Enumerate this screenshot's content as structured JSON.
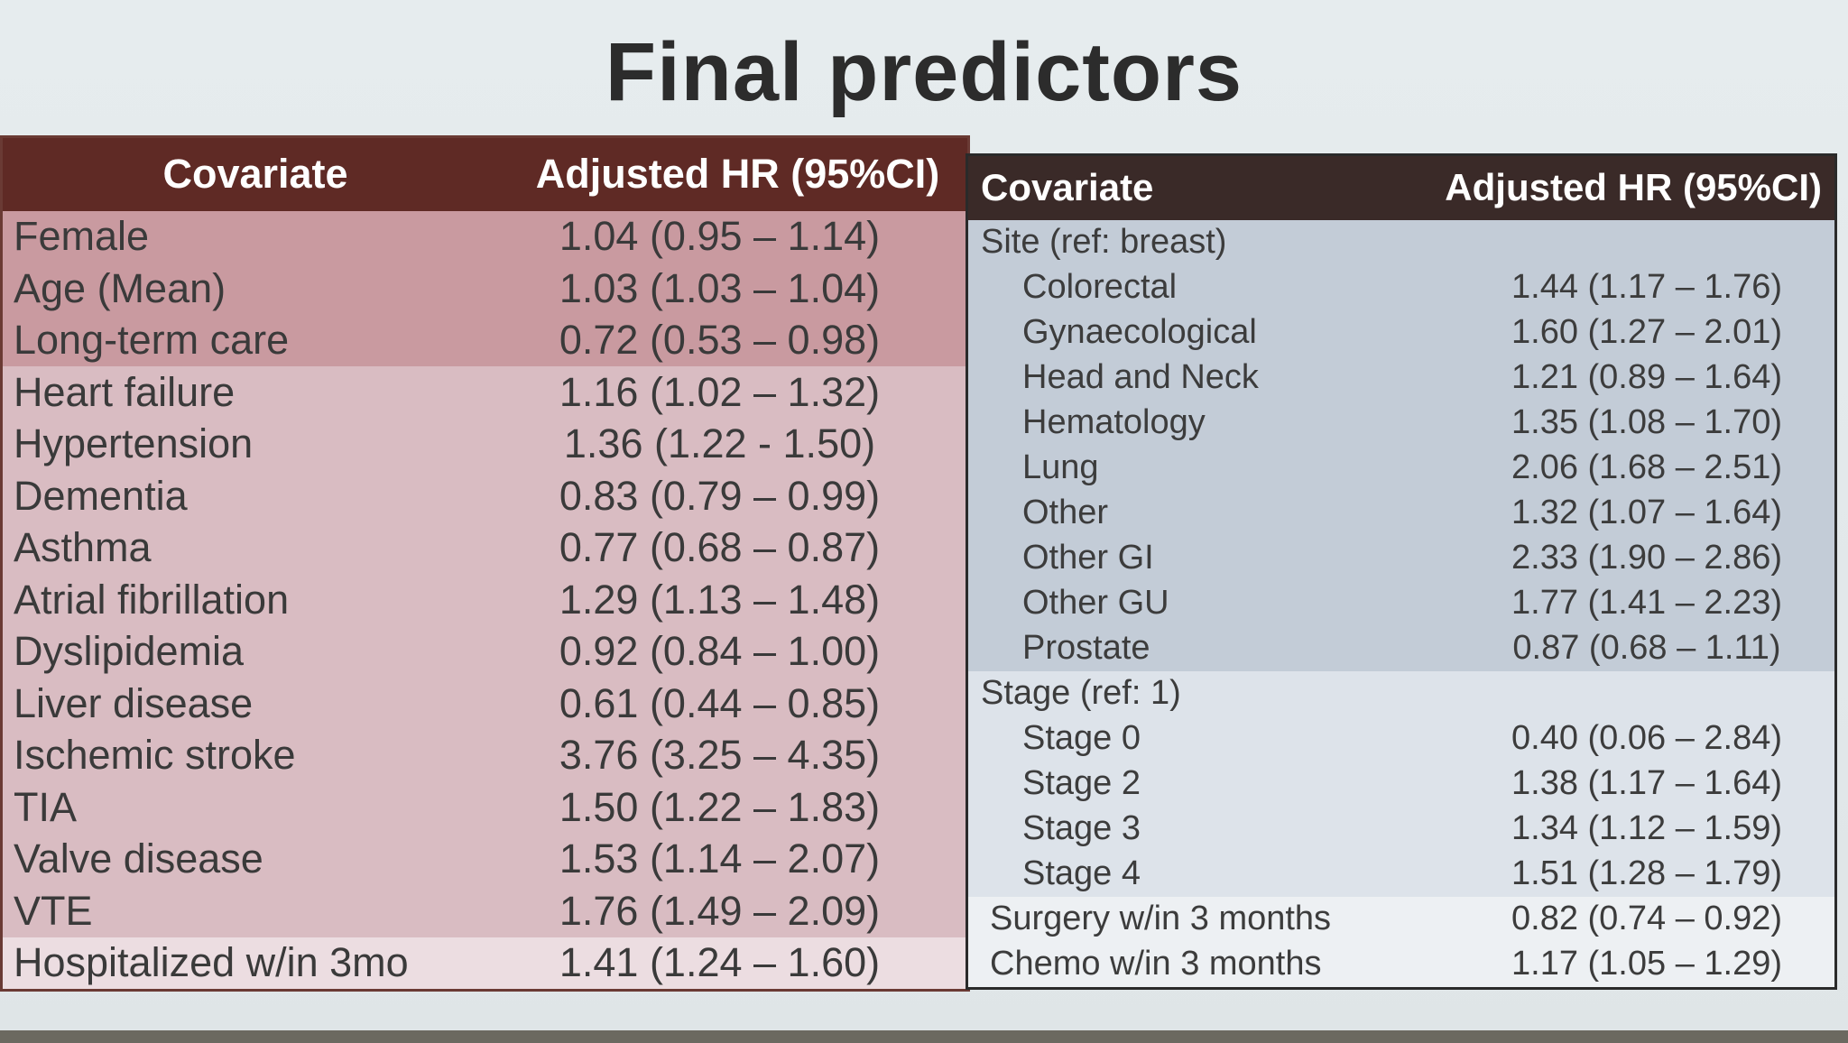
{
  "title": "Final predictors",
  "left_table": {
    "headers": {
      "covariate": "Covariate",
      "hr": "Adjusted HR (95%CI)"
    },
    "rows": [
      {
        "covariate": "Female",
        "hr": "1.04 (0.95 – 1.14)"
      },
      {
        "covariate": "Age (Mean)",
        "hr": "1.03 (1.03 – 1.04)"
      },
      {
        "covariate": "Long-term care",
        "hr": "0.72 (0.53 – 0.98)"
      },
      {
        "covariate": "Heart failure",
        "hr": "1.16 (1.02 – 1.32)"
      },
      {
        "covariate": "Hypertension",
        "hr": "1.36 (1.22 - 1.50)"
      },
      {
        "covariate": "Dementia",
        "hr": "0.83 (0.79 – 0.99)"
      },
      {
        "covariate": "Asthma",
        "hr": "0.77 (0.68 – 0.87)"
      },
      {
        "covariate": "Atrial fibrillation",
        "hr": "1.29 (1.13 – 1.48)"
      },
      {
        "covariate": "Dyslipidemia",
        "hr": "0.92 (0.84 – 1.00)"
      },
      {
        "covariate": "Liver disease",
        "hr": "0.61 (0.44 – 0.85)"
      },
      {
        "covariate": "Ischemic stroke",
        "hr": "3.76 (3.25 – 4.35)"
      },
      {
        "covariate": "TIA",
        "hr": "1.50 (1.22 – 1.83)"
      },
      {
        "covariate": "Valve disease",
        "hr": "1.53 (1.14 – 2.07)"
      },
      {
        "covariate": "VTE",
        "hr": "1.76 (1.49 – 2.09)"
      },
      {
        "covariate": "Hospitalized w/in 3mo",
        "hr": "1.41 (1.24 – 1.60)"
      }
    ]
  },
  "right_table": {
    "headers": {
      "covariate": "Covariate",
      "hr": "Adjusted HR (95%CI)"
    },
    "site_group": "Site (ref: breast)",
    "site_rows": [
      {
        "covariate": "Colorectal",
        "hr": "1.44 (1.17 – 1.76)"
      },
      {
        "covariate": "Gynaecological",
        "hr": "1.60 (1.27 – 2.01)"
      },
      {
        "covariate": "Head and Neck",
        "hr": "1.21 (0.89 – 1.64)"
      },
      {
        "covariate": "Hematology",
        "hr": "1.35 (1.08 – 1.70)"
      },
      {
        "covariate": "Lung",
        "hr": "2.06 (1.68 – 2.51)"
      },
      {
        "covariate": "Other",
        "hr": "1.32 (1.07 – 1.64)"
      },
      {
        "covariate": "Other GI",
        "hr": "2.33 (1.90 – 2.86)"
      },
      {
        "covariate": "Other GU",
        "hr": "1.77 (1.41 – 2.23)"
      },
      {
        "covariate": "Prostate",
        "hr": "0.87 (0.68 – 1.11)"
      }
    ],
    "stage_group": "Stage (ref: 1)",
    "stage_rows": [
      {
        "covariate": "Stage 0",
        "hr": "0.40 (0.06 – 2.84)"
      },
      {
        "covariate": "Stage 2",
        "hr": "1.38 (1.17 – 1.64)"
      },
      {
        "covariate": "Stage 3",
        "hr": "1.34 (1.12 – 1.59)"
      },
      {
        "covariate": "Stage 4",
        "hr": "1.51 (1.28 – 1.79)"
      }
    ],
    "other_rows": [
      {
        "covariate": "Surgery w/in 3 months",
        "hr": "0.82 (0.74 – 0.92)"
      },
      {
        "covariate": "Chemo w/in 3 months",
        "hr": "1.17 (1.05 – 1.29)"
      }
    ]
  }
}
